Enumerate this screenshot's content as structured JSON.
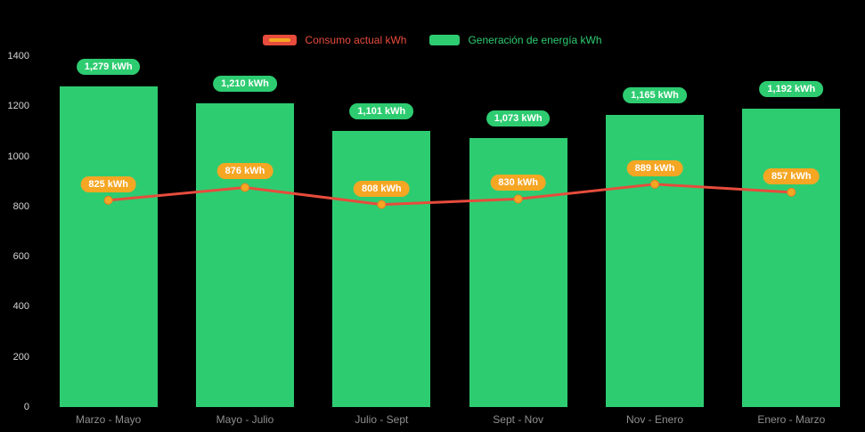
{
  "chart_data": {
    "type": "bar+line",
    "title": "",
    "categories": [
      "Marzo - Mayo",
      "Mayo - Julio",
      "Julio - Sept",
      "Sept - Nov",
      "Nov - Enero",
      "Enero - Marzo"
    ],
    "series": [
      {
        "name": "Consumo actual kWh",
        "type": "line",
        "color": "#e74c3c",
        "marker_color": "#f5a623",
        "values": [
          825,
          876,
          808,
          830,
          889,
          857
        ],
        "labels": [
          "825 kWh",
          "876 kWh",
          "808 kWh",
          "830 kWh",
          "889 kWh",
          "857 kWh"
        ]
      },
      {
        "name": "Generación de energía kWh",
        "type": "bar",
        "color": "#2ecc71",
        "values": [
          1279,
          1210,
          1101,
          1073,
          1165,
          1192
        ],
        "labels": [
          "1,279 kWh",
          "1,210 kWh",
          "1,101 kWh",
          "1,073 kWh",
          "1,165 kWh",
          "1,192 kWh"
        ]
      }
    ],
    "ylim": [
      0,
      1400
    ],
    "yticks": [
      0,
      200,
      400,
      600,
      800,
      1000,
      1200,
      1400
    ],
    "legend_position": "top",
    "background": "#000000",
    "grid": "off"
  }
}
